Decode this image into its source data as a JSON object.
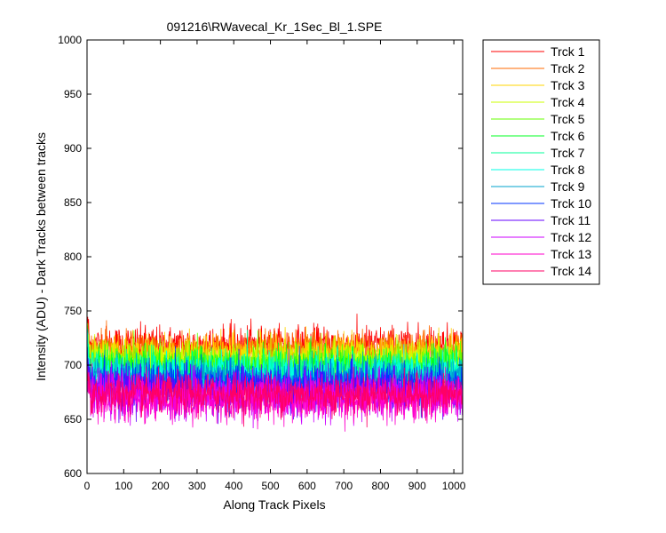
{
  "chart_data": {
    "type": "line",
    "title": "091216\\RWavecal_Kr_1Sec_Bl_1.SPE",
    "xlabel": "Along Track Pixels",
    "ylabel": "Intensity (ADU) - Dark Tracks between tracks",
    "xlim": [
      0,
      1024
    ],
    "ylim": [
      600,
      1000
    ],
    "x_ticks": [
      0,
      100,
      200,
      300,
      400,
      500,
      600,
      700,
      800,
      900,
      1000
    ],
    "y_ticks": [
      600,
      650,
      700,
      750,
      800,
      850,
      900,
      950,
      1000
    ],
    "grid": false,
    "legend_position": "outside-right",
    "n_points": 1024,
    "series": [
      {
        "name": "Trck 1",
        "color": "#ff0000",
        "mean": 718,
        "noise": 9
      },
      {
        "name": "Trck 2",
        "color": "#ff6a00",
        "mean": 713,
        "noise": 9
      },
      {
        "name": "Trck 3",
        "color": "#ffd400",
        "mean": 709,
        "noise": 9
      },
      {
        "name": "Trck 4",
        "color": "#ccff00",
        "mean": 705,
        "noise": 9
      },
      {
        "name": "Trck 5",
        "color": "#66ff00",
        "mean": 700,
        "noise": 9
      },
      {
        "name": "Trck 6",
        "color": "#00ff22",
        "mean": 697,
        "noise": 9
      },
      {
        "name": "Trck 7",
        "color": "#00ff99",
        "mean": 694,
        "noise": 9
      },
      {
        "name": "Trck 8",
        "color": "#00ffe6",
        "mean": 692,
        "noise": 9
      },
      {
        "name": "Trck 9",
        "color": "#00a3cc",
        "mean": 688,
        "noise": 9
      },
      {
        "name": "Trck 10",
        "color": "#0033ff",
        "mean": 682,
        "noise": 10
      },
      {
        "name": "Trck 11",
        "color": "#6600ff",
        "mean": 677,
        "noise": 10
      },
      {
        "name": "Trck 12",
        "color": "#cc00ff",
        "mean": 672,
        "noise": 10
      },
      {
        "name": "Trck 13",
        "color": "#ff00cc",
        "mean": 668,
        "noise": 10
      },
      {
        "name": "Trck 14",
        "color": "#ff0066",
        "mean": 673,
        "noise": 9
      }
    ]
  }
}
